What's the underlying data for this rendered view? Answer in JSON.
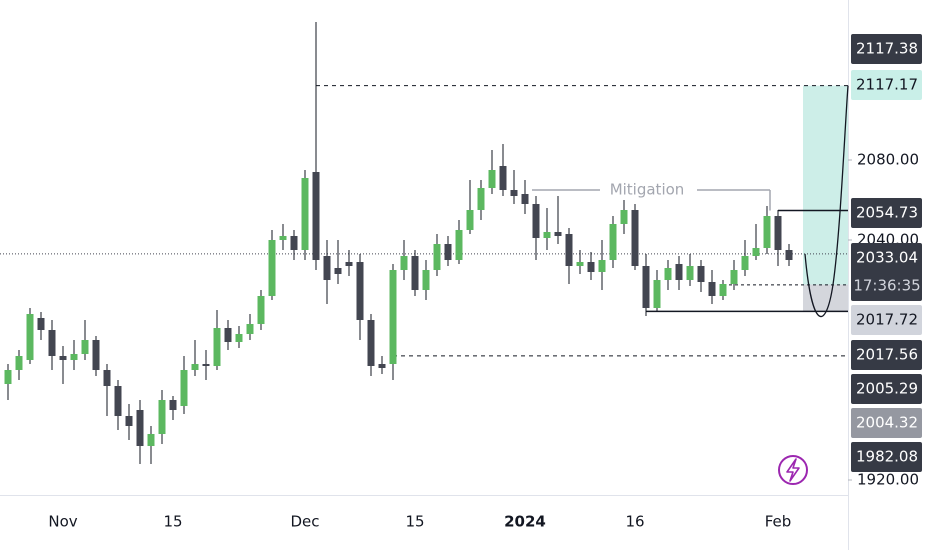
{
  "chart_data": {
    "type": "candlestick",
    "categories": [
      null,
      null,
      null,
      null,
      null,
      "Nov",
      null,
      null,
      null,
      null,
      null,
      null,
      null,
      null,
      null,
      "15",
      null,
      null,
      null,
      null,
      null,
      null,
      null,
      null,
      null,
      null,
      null,
      "Dec",
      null,
      null,
      null,
      null,
      null,
      null,
      null,
      null,
      null,
      "15",
      null,
      null,
      null,
      null,
      null,
      null,
      null,
      null,
      null,
      "2024",
      null,
      null,
      null,
      null,
      null,
      null,
      null,
      null,
      null,
      "16",
      null,
      null,
      null,
      null,
      null,
      null,
      null,
      null,
      null,
      null,
      null,
      null,
      "Feb",
      null
    ],
    "open": [
      1968,
      1975,
      1980,
      2001,
      1995,
      1982,
      1980,
      1983,
      1990,
      1975,
      1967,
      1952,
      1955,
      1937,
      1943,
      1960,
      1957,
      1975,
      1978,
      1977,
      1996,
      1989,
      1993,
      1998,
      2012,
      2040,
      2042,
      2035,
      2074,
      2032,
      2026,
      2029,
      2029,
      2000,
      1978,
      1978,
      2025,
      2032,
      2015,
      2025,
      2038,
      2030,
      2045,
      2055,
      2066,
      2077,
      2065,
      2063,
      2058,
      2041,
      2044,
      2043,
      2027,
      2029,
      2024,
      2030,
      2048,
      2055,
      2027,
      2006,
      2020,
      2028,
      2020,
      2027,
      2019,
      2012,
      2018,
      2025,
      2032,
      2036,
      2052,
      2035
    ],
    "high": [
      1978,
      1985,
      2006,
      2004,
      2000,
      1987,
      1990,
      2000,
      1992,
      1978,
      1970,
      1958,
      1960,
      1947,
      1965,
      1962,
      1982,
      1990,
      1985,
      2005,
      2000,
      1997,
      2003,
      2015,
      2045,
      2048,
      2045,
      2075,
      2149,
      2040,
      2040,
      2035,
      2033,
      2003,
      1982,
      2028,
      2040,
      2035,
      2030,
      2043,
      2042,
      2050,
      2070,
      2070,
      2085,
      2088,
      2075,
      2070,
      2062,
      2056,
      2062,
      2046,
      2035,
      2034,
      2040,
      2052,
      2060,
      2058,
      2033,
      2025,
      2030,
      2032,
      2033,
      2030,
      2025,
      2020,
      2030,
      2040,
      2048,
      2057,
      2055,
      2038
    ],
    "low": [
      1960,
      1970,
      1978,
      1990,
      1975,
      1968,
      1975,
      1980,
      1972,
      1952,
      1945,
      1940,
      1928,
      1928,
      1938,
      1950,
      1953,
      1972,
      1970,
      1975,
      1985,
      1986,
      1990,
      1995,
      2010,
      2035,
      2030,
      2030,
      2025,
      2008,
      2018,
      2022,
      1990,
      1972,
      1973,
      1970,
      2020,
      2012,
      2010,
      2022,
      2027,
      2028,
      2043,
      2050,
      2063,
      2062,
      2058,
      2053,
      2030,
      2035,
      2038,
      2018,
      2023,
      2020,
      2015,
      2026,
      2043,
      2025,
      2002,
      2004,
      2015,
      2015,
      2017,
      2014,
      2008,
      2010,
      2015,
      2022,
      2030,
      2033,
      2027,
      2027
    ],
    "close": [
      1975,
      1982,
      2003,
      1995,
      1982,
      1980,
      1983,
      1990,
      1975,
      1967,
      1952,
      1947,
      1937,
      1943,
      1960,
      1955,
      1975,
      1978,
      1977,
      1996,
      1989,
      1993,
      1998,
      2012,
      2040,
      2042,
      2035,
      2071,
      2030,
      2020,
      2023,
      2027,
      2000,
      1977,
      1976,
      2025,
      2032,
      2015,
      2025,
      2038,
      2030,
      2045,
      2055,
      2066,
      2075,
      2065,
      2062,
      2058,
      2041,
      2044,
      2042,
      2027,
      2029,
      2024,
      2030,
      2048,
      2055,
      2027,
      2006,
      2020,
      2026,
      2020,
      2027,
      2019,
      2012,
      2018,
      2025,
      2032,
      2036,
      2052,
      2035,
      2030
    ],
    "up_color": "#5cb860",
    "down_color": "#434651",
    "ylim": [
      1912.5,
      2160
    ],
    "yticks": [
      {
        "value": 2080,
        "label": "2080.00"
      },
      {
        "value": 2040,
        "label": "2040.00"
      },
      {
        "value": 1920,
        "label": "1920.00"
      }
    ],
    "price_labels": [
      {
        "value": 2117.38,
        "style": "dark"
      },
      {
        "value": 2117.17,
        "style": "teal"
      },
      {
        "value": 2054.73,
        "style": "dark"
      },
      {
        "value": 2033.04,
        "style": "dark"
      },
      {
        "value": 2017.72,
        "style": "light"
      },
      {
        "value": 2017.56,
        "style": "dark"
      },
      {
        "value": 2005.29,
        "style": "dark"
      },
      {
        "value": 2004.32,
        "style": "grey"
      },
      {
        "value": 1982.08,
        "style": "dark"
      }
    ],
    "countdown": "17:36:35",
    "annotation": "Mitigation",
    "zone_color": "#cdeee8"
  }
}
